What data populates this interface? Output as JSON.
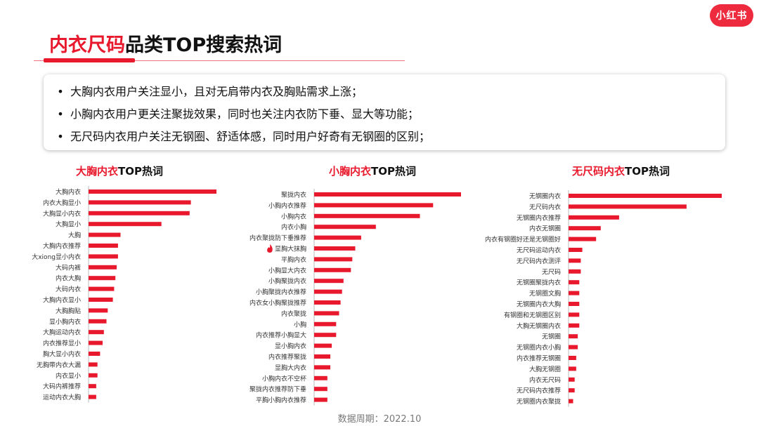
{
  "brand": {
    "logo_text": "小红书"
  },
  "header": {
    "title_highlight": "内衣尺码",
    "title_rest": "品类TOP搜索热词"
  },
  "summary": [
    "大胸内衣用户关注显小，且对无肩带内衣及胸贴需求上涨；",
    "小胸内衣用户更关注聚拢效果，同时也关注内衣防下垂、显大等功能；",
    "无尺码内衣用户关注无钢圈、舒适体感，同时用户好奇有无钢圈的区别；"
  ],
  "bullet_symbol": "•",
  "panels": [
    {
      "title_highlight": "大胸内衣",
      "title_rest": "TOP热词"
    },
    {
      "title_highlight": "小胸内衣",
      "title_rest": "TOP热词"
    },
    {
      "title_highlight": "无尺码内衣",
      "title_rest": "TOP热词"
    }
  ],
  "chart_data": [
    {
      "type": "bar",
      "orientation": "horizontal",
      "categories": [
        "大胸内衣",
        "内衣大胸显小",
        "大胸显小内衣",
        "大胸显小",
        "大胸",
        "大胸内衣推荐",
        "大xiong显小内衣",
        "大码内裤",
        "内衣大胸",
        "大码内衣",
        "大胸内衣显小",
        "大胸胸贴",
        "显小胸内衣",
        "大胸运动内衣",
        "内衣推荐显小",
        "胸大显小内衣",
        "无胸带内衣大漏",
        "内衣显小",
        "大码内裤推荐",
        "运动内衣大胸"
      ],
      "values": [
        100,
        80,
        79,
        57,
        25,
        23,
        23,
        22,
        21,
        20,
        19,
        15,
        14,
        12,
        11,
        9,
        7,
        7,
        6,
        6
      ],
      "bar_color": "#e8192c",
      "grid": false
    },
    {
      "type": "bar",
      "orientation": "horizontal",
      "categories": [
        "聚拢内衣",
        "小胸内衣推荐",
        "小胸内衣",
        "内衣小胸",
        "内衣聚拢防下垂推荐",
        "显胸大抹胸",
        "平胸内衣",
        "小胸显大内衣",
        "小胸聚拢内衣",
        "小胸聚拢内衣推荐",
        "内衣女小胸聚拢推荐",
        "内衣聚拢",
        "小胸",
        "内衣推荐小胸显大",
        "显小胸内衣",
        "内衣推荐聚拢",
        "显胸大内衣",
        "小胸内衣不空杯",
        "聚拢内衣推荐防下垂",
        "平胸小胸内衣推荐"
      ],
      "values": [
        100,
        81,
        72,
        42,
        32,
        28,
        26,
        25,
        20,
        19,
        18,
        17,
        15,
        15,
        12,
        11,
        11,
        9,
        9,
        9
      ],
      "bar_color": "#e8192c",
      "grid": false,
      "annotations": [
        {
          "category": "显胸大抹胸",
          "icon": "flame-icon"
        }
      ]
    },
    {
      "type": "bar",
      "orientation": "horizontal",
      "categories": [
        "无钢圈内衣",
        "无尺码内衣",
        "无钢圈内衣推荐",
        "内衣无钢圈",
        "内衣有钢圈好还是无钢圈好",
        "无尺码运动内衣",
        "无尺码内衣测评",
        "无尺码",
        "无钢圈聚拢内衣",
        "无钢圈文胸",
        "无钢圈内衣大胸",
        "有钢圈和无钢圈区别",
        "大胸无钢圈内衣",
        "无钢圈",
        "无钢圈内衣小胸",
        "内衣推荐无钢圈",
        "大胸无钢圈",
        "内衣无尺码",
        "无尺码内衣推荐",
        "无钢圈内衣聚拢"
      ],
      "values": [
        100,
        77,
        33,
        21,
        18,
        9,
        8,
        8,
        7,
        7,
        7,
        7,
        7,
        6,
        6,
        5,
        5,
        4,
        4,
        3
      ],
      "bar_color": "#e8192c",
      "grid": false
    }
  ],
  "footer": {
    "text": "数据周期：2022.10"
  }
}
